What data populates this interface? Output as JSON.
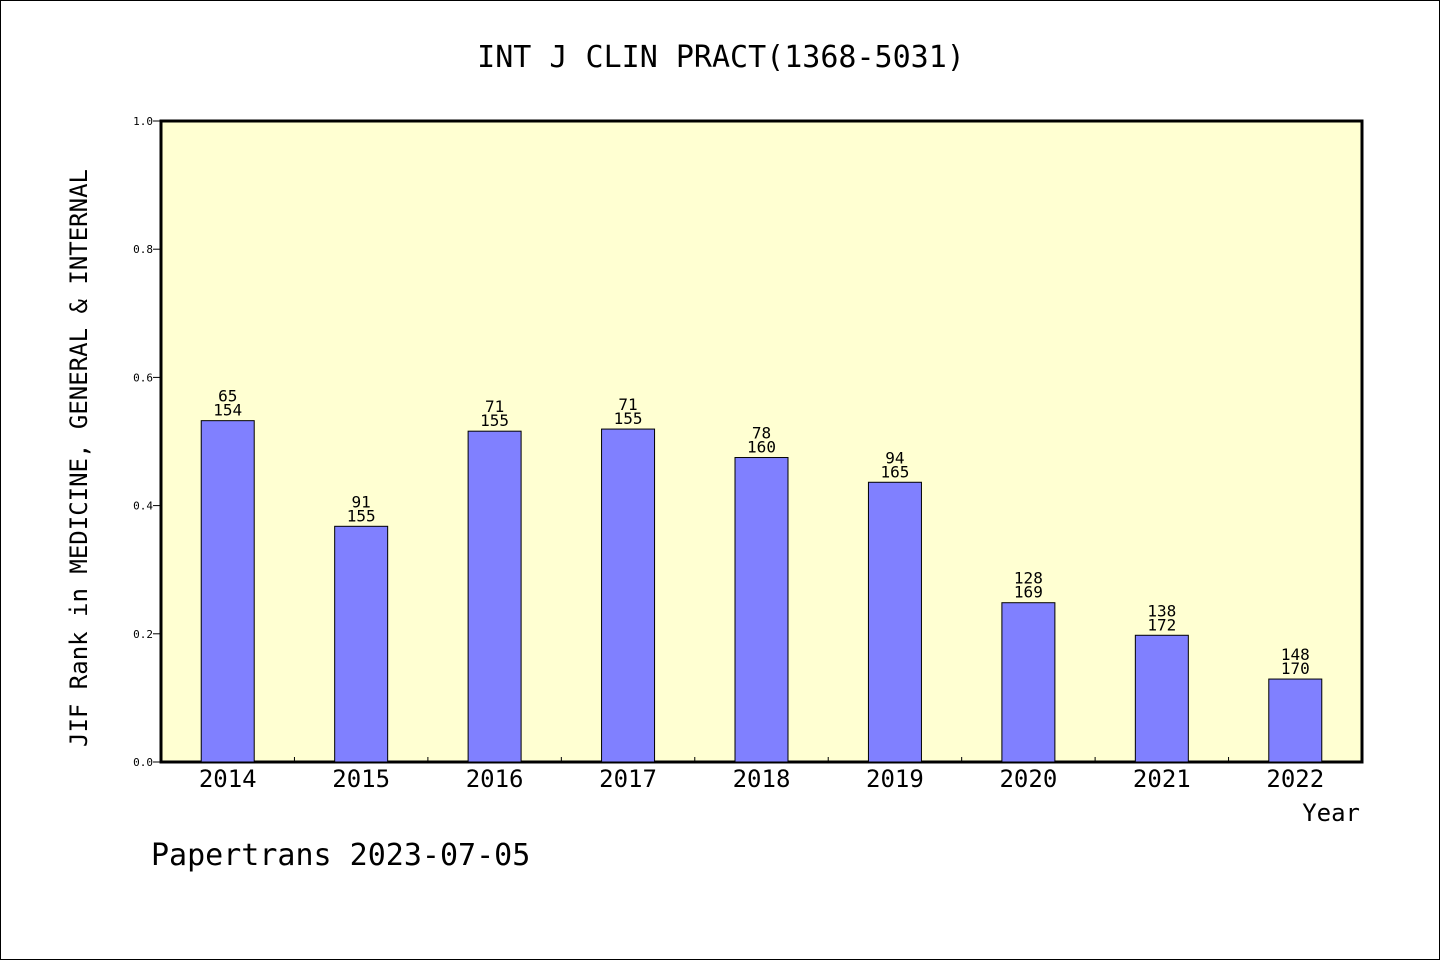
{
  "chart_data": {
    "type": "bar",
    "title": "INT J CLIN PRACT(1368-5031)",
    "xlabel": "Year",
    "ylabel": "JIF Rank in MEDICINE, GENERAL & INTERNAL",
    "ylim": [
      0,
      1.0
    ],
    "yticks": [
      "0.0",
      "0.2",
      "0.4",
      "0.6",
      "0.8",
      "1.0"
    ],
    "categories": [
      "2014",
      "2015",
      "2016",
      "2017",
      "2018",
      "2019",
      "2020",
      "2021",
      "2022"
    ],
    "values": [
      0.5325,
      0.3677,
      0.5161,
      0.5194,
      0.475,
      0.4364,
      0.2485,
      0.1977,
      0.1294
    ],
    "rank": [
      "65",
      "91",
      "71",
      "71",
      "78",
      "94",
      "128",
      "138",
      "148"
    ],
    "total": [
      "154",
      "155",
      "155",
      "155",
      "160",
      "165",
      "169",
      "172",
      "170"
    ],
    "grid": false
  },
  "colors": {
    "plot_background": "#ffffd2",
    "bar_fill": "#8080ff",
    "bar_stroke": "#000000"
  },
  "footer": "Papertrans 2023-07-05"
}
